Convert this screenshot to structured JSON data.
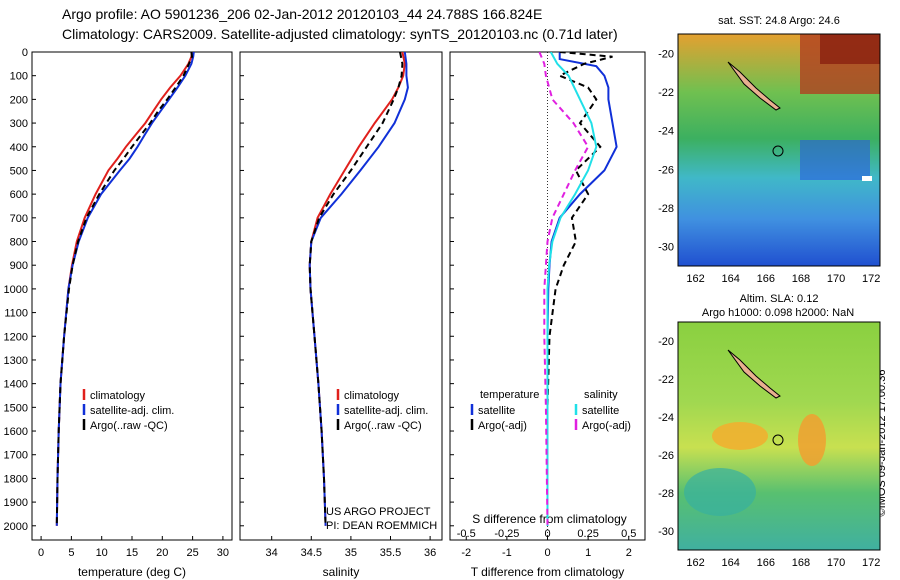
{
  "header": {
    "line1": "Argo profile: AO 5901236_206 02-Jan-2012 20120103_44 24.788S 166.824E",
    "line2": "Climatology: CARS2009. Satellite-adjusted climatology: synTS_20120103.nc (0.71d later)"
  },
  "credit": "©IMOS 09-Jan-2012 17:00:36",
  "colors": {
    "climatology": "#e0201c",
    "satellite": "#1030d8",
    "argo": "#000000",
    "cyan": "#20e0e8",
    "magenta": "#e020e0"
  },
  "depth_axis": {
    "ticks": [
      0,
      100,
      200,
      300,
      400,
      500,
      600,
      700,
      800,
      900,
      1000,
      1100,
      1200,
      1300,
      1400,
      1500,
      1600,
      1700,
      1800,
      1900,
      2000
    ],
    "range": [
      0,
      2060
    ],
    "inverted": true
  },
  "chart_data": [
    {
      "type": "line",
      "xlabel": "temperature (deg C)",
      "xlim": [
        -1.5,
        31.5
      ],
      "xticks": [
        0,
        5,
        10,
        15,
        20,
        25,
        30
      ],
      "legend": [
        "climatology",
        "satellite-adj. clim.",
        "Argo(..raw -QC)"
      ],
      "series": [
        {
          "name": "climatology",
          "color": "#e0201c",
          "dash": false,
          "depth": [
            0,
            20,
            50,
            100,
            150,
            200,
            250,
            300,
            350,
            400,
            450,
            500,
            600,
            700,
            800,
            900,
            1000,
            1200,
            1400,
            1600,
            1800,
            2000
          ],
          "values": [
            24.9,
            24.8,
            24.3,
            23.0,
            21.3,
            19.8,
            18.5,
            17.2,
            15.6,
            14.0,
            12.6,
            11.1,
            9.0,
            7.2,
            5.9,
            5.1,
            4.5,
            3.8,
            3.2,
            2.9,
            2.7,
            2.6
          ]
        },
        {
          "name": "satellite-adj. clim.",
          "color": "#1030d8",
          "dash": false,
          "depth": [
            0,
            20,
            50,
            100,
            150,
            200,
            250,
            300,
            350,
            400,
            450,
            500,
            600,
            700,
            800,
            900,
            1000,
            1200,
            1400,
            1600,
            1800,
            2000
          ],
          "values": [
            25.2,
            25.1,
            24.8,
            23.8,
            22.5,
            21.1,
            19.7,
            18.3,
            17.1,
            15.9,
            14.6,
            13.0,
            9.9,
            7.7,
            6.2,
            5.2,
            4.5,
            3.8,
            3.2,
            2.9,
            2.7,
            2.6
          ]
        },
        {
          "name": "Argo(..raw -QC)",
          "color": "#000000",
          "dash": true,
          "depth": [
            0,
            20,
            50,
            100,
            150,
            200,
            250,
            300,
            350,
            400,
            450,
            500,
            600,
            700,
            800,
            900,
            1000,
            1200,
            1400,
            1600,
            1800,
            2000
          ],
          "values": [
            24.8,
            24.9,
            24.4,
            23.5,
            22.2,
            20.8,
            19.3,
            18.0,
            16.5,
            15.0,
            13.6,
            12.1,
            9.6,
            7.5,
            6.1,
            5.2,
            4.6,
            3.8,
            3.2,
            2.9,
            2.7,
            2.6
          ]
        }
      ]
    },
    {
      "type": "line",
      "xlabel": "salinity",
      "xlim": [
        33.6,
        36.15
      ],
      "xticks": [
        34,
        34.5,
        35,
        35.5,
        36
      ],
      "legend": [
        "climatology",
        "satellite-adj. clim.",
        "Argo(..raw -QC)"
      ],
      "series": [
        {
          "name": "climatology",
          "color": "#e0201c",
          "dash": false,
          "depth": [
            0,
            50,
            100,
            150,
            200,
            300,
            400,
            500,
            600,
            700,
            800,
            900,
            1000,
            1200,
            1400,
            1600,
            1800,
            2000
          ],
          "values": [
            35.65,
            35.68,
            35.66,
            35.6,
            35.52,
            35.3,
            35.1,
            34.92,
            34.74,
            34.58,
            34.5,
            34.48,
            34.49,
            34.54,
            34.59,
            34.63,
            34.66,
            34.68
          ]
        },
        {
          "name": "satellite-adj. clim.",
          "color": "#1030d8",
          "dash": false,
          "depth": [
            0,
            50,
            100,
            150,
            200,
            300,
            400,
            500,
            600,
            700,
            800,
            900,
            1000,
            1200,
            1400,
            1600,
            1800,
            2000
          ],
          "values": [
            35.68,
            35.7,
            35.7,
            35.72,
            35.68,
            35.55,
            35.35,
            35.12,
            34.88,
            34.62,
            34.5,
            34.48,
            34.49,
            34.54,
            34.59,
            34.63,
            34.66,
            34.68
          ]
        },
        {
          "name": "Argo(..raw -QC)",
          "color": "#000000",
          "dash": true,
          "depth": [
            0,
            50,
            100,
            150,
            200,
            300,
            400,
            500,
            600,
            700,
            800,
            900,
            1000,
            1200,
            1400,
            1600,
            1800,
            2000
          ],
          "values": [
            35.62,
            35.65,
            35.64,
            35.6,
            35.54,
            35.4,
            35.2,
            35.0,
            34.78,
            34.6,
            34.5,
            34.48,
            34.49,
            34.54,
            34.59,
            34.63,
            34.66,
            34.68
          ]
        }
      ]
    },
    {
      "type": "line",
      "xlabel": "T difference from climatology",
      "xlabel2": "S difference from climatology",
      "xlim": [
        -2.4,
        2.4
      ],
      "xticks": [
        -2,
        -1,
        0,
        1,
        2
      ],
      "xticks2": [
        -0.5,
        -0.25,
        0,
        0.25,
        0.5
      ],
      "legend_temperature": [
        "temperature",
        "satellite",
        "Argo(-adj)"
      ],
      "legend_salinity": [
        "salinity",
        "satellite",
        "Argo(-adj)"
      ],
      "series": [
        {
          "name": "temperature satellite",
          "color": "#1030d8",
          "dash": false,
          "depth": [
            0,
            30,
            60,
            100,
            150,
            200,
            300,
            400,
            500,
            600,
            700,
            800,
            900,
            1000,
            1200,
            1500,
            2000
          ],
          "values": [
            0.3,
            0.3,
            1.2,
            1.4,
            1.5,
            1.5,
            1.6,
            1.7,
            1.4,
            0.8,
            0.3,
            0.1,
            0.05,
            0.02,
            0,
            0,
            0
          ]
        },
        {
          "name": "temperature Argo(-adj)",
          "color": "#000000",
          "dash": true,
          "depth": [
            0,
            20,
            50,
            100,
            150,
            200,
            300,
            400,
            500,
            600,
            700,
            800,
            900,
            1000,
            1200,
            1500,
            2000
          ],
          "values": [
            0.3,
            1.6,
            0.9,
            0.3,
            1.0,
            1.2,
            0.8,
            1.3,
            0.7,
            1.0,
            0.6,
            0.7,
            0.4,
            0.2,
            0.05,
            0,
            0
          ]
        },
        {
          "name": "salinity satellite",
          "color": "#20e0e8",
          "dash": false,
          "depth": [
            0,
            50,
            100,
            200,
            300,
            400,
            500,
            600,
            700,
            800,
            900,
            1000,
            1200,
            1500,
            2000
          ],
          "values": [
            0.02,
            0.06,
            0.13,
            0.2,
            0.27,
            0.3,
            0.25,
            0.17,
            0.08,
            0.03,
            0.01,
            0,
            0,
            0,
            0
          ]
        },
        {
          "name": "salinity Argo(-adj)",
          "color": "#e020e0",
          "dash": true,
          "depth": [
            0,
            50,
            100,
            200,
            300,
            400,
            500,
            600,
            700,
            800,
            900,
            1000,
            1200,
            1500,
            2000
          ],
          "values": [
            -0.05,
            -0.02,
            -0.01,
            0.03,
            0.16,
            0.25,
            0.17,
            0.1,
            0.03,
            0,
            -0.01,
            -0.02,
            -0.02,
            -0.01,
            0
          ]
        }
      ]
    },
    {
      "type": "heatmap",
      "title": "sat. SST: 24.8 Argo: 24.6",
      "xticks": [
        162,
        164,
        166,
        168,
        170,
        172
      ],
      "yticks": [
        -20,
        -22,
        -24,
        -26,
        -28,
        -30
      ],
      "xlim": [
        161,
        172.5
      ],
      "ylim": [
        -31,
        -19
      ]
    },
    {
      "type": "heatmap",
      "title": "Altim. SLA: 0.12",
      "subtitle": "Argo h1000: 0.098 h2000: NaN",
      "xticks": [
        162,
        164,
        166,
        168,
        170,
        172
      ],
      "yticks": [
        -20,
        -22,
        -24,
        -26,
        -28,
        -30
      ],
      "xlim": [
        161,
        172.5
      ],
      "ylim": [
        -31,
        -19
      ]
    }
  ],
  "profile_annotations": {
    "project": "US ARGO PROJECT",
    "pi": "PI: DEAN ROEMMICH"
  }
}
